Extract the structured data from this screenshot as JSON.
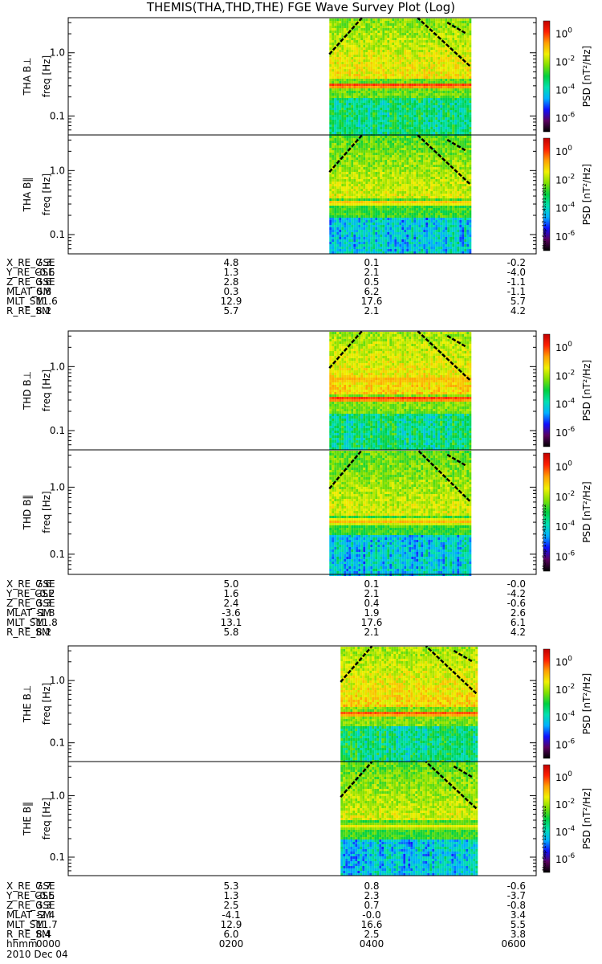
{
  "chart_data": {
    "type": "heatmap",
    "title": "THEMIS(THA,THD,THE) FGE Wave Survey Plot (Log)",
    "colorbar": {
      "label": "PSD [nT²/Hz]",
      "ticks": [
        {
          "base": "10",
          "exp": "0"
        },
        {
          "base": "10",
          "exp": "-2"
        },
        {
          "base": "10",
          "exp": "-4"
        },
        {
          "base": "10",
          "exp": "-6"
        }
      ],
      "colors": [
        "#000000",
        "#5a0060",
        "#1010ff",
        "#00b0ff",
        "#00e0b0",
        "#00d040",
        "#80e000",
        "#f0f000",
        "#ffa000",
        "#ff2000",
        "#c00000"
      ]
    },
    "yaxis": {
      "label": "freq [Hz]",
      "scale": "log",
      "ticks": [
        "1.0",
        "0.1"
      ]
    },
    "date_stamp": "Mon Sep 17 12:43:01 2012",
    "probes": [
      {
        "panels": [
          {
            "ylabel": "THA B⊥",
            "data_start": 0.558,
            "data_end": 0.858,
            "bands": [
              {
                "freq": 0.32,
                "intensity": 0.9
              }
            ],
            "bg_high": 0.72,
            "bg_low": 0.45
          },
          {
            "ylabel": "THA B‖",
            "data_start": 0.558,
            "data_end": 0.858,
            "bands": [
              {
                "freq": 0.33,
                "intensity": 0.78
              }
            ],
            "bg_high": 0.68,
            "bg_low": 0.35
          }
        ],
        "ephemeris": [
          {
            "name": "X_RE_GSE",
            "values": [
              "7.3",
              "4.8",
              "0.1",
              "-0.2"
            ]
          },
          {
            "name": "Y_RE_GSE",
            "values": [
              "-0.6",
              "1.3",
              "2.1",
              "-4.0"
            ]
          },
          {
            "name": "Z_RE_GSE",
            "values": [
              "3.6",
              "2.8",
              "0.5",
              "-1.1"
            ]
          },
          {
            "name": "MLAT_SM",
            "values": [
              "0.8",
              "0.3",
              "6.2",
              "-1.1"
            ]
          },
          {
            "name": "MLT_SM",
            "values": [
              "11.6",
              "12.9",
              "17.6",
              "5.7"
            ]
          },
          {
            "name": "R_RE_SM",
            "values": [
              "8.2",
              "5.7",
              "2.1",
              "4.2"
            ]
          }
        ]
      },
      {
        "panels": [
          {
            "ylabel": "THD B⊥",
            "data_start": 0.558,
            "data_end": 0.858,
            "bands": [
              {
                "freq": 0.33,
                "intensity": 0.9
              },
              {
                "freq": 0.65,
                "intensity": 0.82
              }
            ],
            "bg_high": 0.74,
            "bg_low": 0.45
          },
          {
            "ylabel": "THD B‖",
            "data_start": 0.558,
            "data_end": 0.858,
            "bands": [
              {
                "freq": 0.32,
                "intensity": 0.78
              },
              {
                "freq": 0.65,
                "intensity": 0.6
              }
            ],
            "bg_high": 0.68,
            "bg_low": 0.35
          }
        ],
        "ephemeris": [
          {
            "name": "X_RE_GSE",
            "values": [
              "7.6",
              "5.0",
              "0.1",
              "-0.0"
            ]
          },
          {
            "name": "Y_RE_GSE",
            "values": [
              "-0.2",
              "1.6",
              "2.1",
              "-4.2"
            ]
          },
          {
            "name": "Z_RE_GSE",
            "values": [
              "3.3",
              "2.4",
              "0.4",
              "-0.6"
            ]
          },
          {
            "name": "MLAT_SM",
            "values": [
              "-1.8",
              "-3.6",
              "1.9",
              "2.6"
            ]
          },
          {
            "name": "MLT_SM",
            "values": [
              "11.8",
              "13.1",
              "17.6",
              "6.1"
            ]
          },
          {
            "name": "R_RE_SM",
            "values": [
              "8.2",
              "5.8",
              "2.1",
              "4.2"
            ]
          }
        ]
      },
      {
        "panels": [
          {
            "ylabel": "THE B⊥",
            "data_start": 0.582,
            "data_end": 0.872,
            "bands": [
              {
                "freq": 0.31,
                "intensity": 0.88
              }
            ],
            "bg_high": 0.74,
            "bg_low": 0.45
          },
          {
            "ylabel": "THE B‖",
            "data_start": 0.582,
            "data_end": 0.872,
            "bands": [
              {
                "freq": 0.33,
                "intensity": 0.72
              }
            ],
            "bg_high": 0.68,
            "bg_low": 0.35
          }
        ],
        "ephemeris": [
          {
            "name": "X_RE_GSE",
            "values": [
              "7.7",
              "5.3",
              "0.8",
              "-0.6"
            ]
          },
          {
            "name": "Y_RE_GSE",
            "values": [
              "-0.5",
              "1.3",
              "2.3",
              "-3.7"
            ]
          },
          {
            "name": "Z_RE_GSE",
            "values": [
              "3.3",
              "2.5",
              "0.7",
              "-0.8"
            ]
          },
          {
            "name": "MLAT_SM",
            "values": [
              "-2.4",
              "-4.1",
              "-0.0",
              "3.4"
            ]
          },
          {
            "name": "MLT_SM",
            "values": [
              "11.7",
              "12.9",
              "16.6",
              "5.5"
            ]
          },
          {
            "name": "R_RE_SM",
            "values": [
              "8.4",
              "6.0",
              "2.5",
              "3.8"
            ]
          }
        ]
      }
    ],
    "time_axis": {
      "label": "hhmm",
      "ticks": [
        "0000",
        "0200",
        "0400",
        "0600"
      ],
      "range_hours": [
        0,
        6
      ]
    },
    "date_label": "2010 Dec 04"
  }
}
